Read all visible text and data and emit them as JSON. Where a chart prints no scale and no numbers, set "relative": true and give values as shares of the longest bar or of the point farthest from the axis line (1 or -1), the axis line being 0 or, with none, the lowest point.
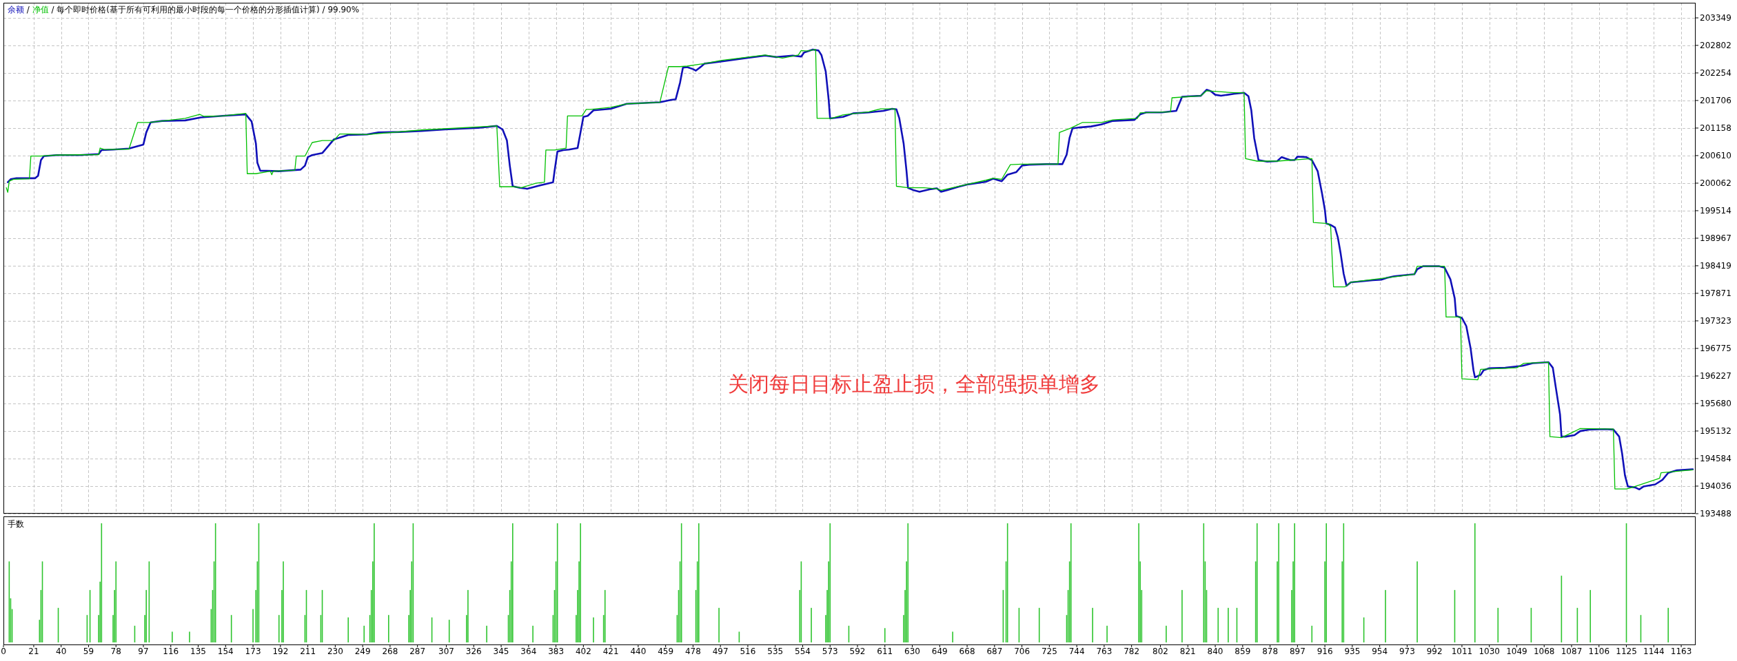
{
  "chart_data": [
    {
      "type": "line",
      "subtitle": "/ 每个即时价格(基于所有可利用的最小时段的每一个价格的分形插值计算) / 99.90%",
      "annotations": [
        "/",
        "关闭每日目标止盈止损，全部强损单增多"
      ],
      "legend": "top left",
      "grid": true,
      "tick_labels": "y",
      "xlim": [
        0,
        1173
      ],
      "xticks": [
        0,
        21,
        40,
        59,
        78,
        97,
        116,
        135,
        154,
        173,
        192,
        211,
        230,
        249,
        268,
        287,
        307,
        326,
        345,
        364,
        383,
        402,
        421,
        440,
        459,
        478,
        497,
        516,
        535,
        554,
        573,
        592,
        611,
        630,
        649,
        668,
        687,
        706,
        725,
        744,
        763,
        782,
        802,
        821,
        840,
        859,
        878,
        897,
        916,
        935,
        954,
        973,
        992,
        1011,
        1030,
        1049,
        1068,
        1087,
        1106,
        1125,
        1144,
        1163
      ],
      "ylim": [
        193488,
        203650
      ],
      "yticks": [
        193488,
        194036,
        194584,
        195132,
        195680,
        196227,
        196775,
        197323,
        197871,
        198419,
        198967,
        199514,
        200062,
        200610,
        201158,
        201706,
        202254,
        202802,
        203349
      ],
      "series": [
        {
          "name": "余额",
          "color": "#1010b8",
          "x": [
            3,
            5,
            9,
            22,
            24,
            26,
            28,
            37,
            53,
            66,
            68,
            76,
            87,
            97,
            99,
            102,
            110,
            126,
            137,
            152,
            168,
            172,
            175,
            176,
            178,
            191,
            206,
            209,
            211,
            214,
            221,
            229,
            239,
            252,
            260,
            275,
            290,
            306,
            329,
            342,
            346,
            349,
            351,
            353,
            358,
            363,
            371,
            381,
            382,
            384,
            388,
            392,
            398,
            400,
            402,
            405,
            409,
            421,
            432,
            455,
            463,
            466,
            469,
            471,
            474,
            478,
            480,
            484,
            486,
            497,
            517,
            528,
            536,
            547,
            553,
            555,
            561,
            565,
            567,
            570,
            572,
            573,
            582,
            589,
            600,
            610,
            616,
            619,
            621,
            624,
            626,
            627,
            631,
            635,
            642,
            647,
            650,
            654,
            662,
            669,
            681,
            686,
            692,
            696,
            702,
            706,
            711,
            723,
            734,
            737,
            739,
            741,
            746,
            754,
            761,
            769,
            784,
            788,
            792,
            803,
            813,
            817,
            823,
            830,
            834,
            837,
            840,
            844,
            853,
            860,
            863,
            865,
            867,
            870,
            876,
            883,
            886,
            892,
            895,
            897,
            903,
            907,
            911,
            914,
            916,
            917,
            920,
            923,
            925,
            927,
            929,
            931,
            934,
            938,
            949,
            955,
            959,
            964,
            978,
            980,
            984,
            995,
            999,
            1003,
            1006,
            1007,
            1011,
            1014,
            1017,
            1019,
            1020,
            1024,
            1026,
            1030,
            1041,
            1053,
            1060,
            1071,
            1074,
            1076,
            1079,
            1080,
            1083,
            1089,
            1093,
            1099,
            1110,
            1116,
            1120,
            1122,
            1124,
            1126,
            1131,
            1134,
            1137,
            1145,
            1150,
            1154,
            1160,
            1171
          ],
          "values": [
            200080,
            200140,
            200160,
            200160,
            200210,
            200520,
            200600,
            200620,
            200620,
            200640,
            200720,
            200730,
            200750,
            200830,
            201070,
            201270,
            201300,
            201310,
            201370,
            201400,
            201430,
            201290,
            200850,
            200470,
            200310,
            200300,
            200330,
            200410,
            200580,
            200620,
            200660,
            200930,
            201020,
            201030,
            201070,
            201080,
            201100,
            201130,
            201160,
            201200,
            201130,
            200910,
            200410,
            200000,
            199970,
            199950,
            200010,
            200080,
            200300,
            200690,
            200720,
            200730,
            200760,
            201070,
            201380,
            201400,
            201510,
            201540,
            201640,
            201670,
            201720,
            201730,
            202060,
            202360,
            202370,
            202330,
            202300,
            202390,
            202440,
            202480,
            202560,
            202600,
            202570,
            202600,
            202580,
            202660,
            202720,
            202700,
            202610,
            202280,
            201730,
            201350,
            201380,
            201450,
            201470,
            201500,
            201540,
            201530,
            201350,
            200850,
            200300,
            199970,
            199920,
            199890,
            199940,
            199960,
            199890,
            199920,
            199990,
            200040,
            200090,
            200150,
            200100,
            200230,
            200280,
            200410,
            200430,
            200440,
            200440,
            200630,
            200960,
            201150,
            201170,
            201190,
            201230,
            201300,
            201320,
            201430,
            201470,
            201470,
            201500,
            201780,
            201790,
            201800,
            201920,
            201890,
            201820,
            201800,
            201840,
            201860,
            201790,
            201510,
            200960,
            200520,
            200490,
            200500,
            200580,
            200520,
            200520,
            200590,
            200580,
            200520,
            200300,
            199860,
            199530,
            199260,
            199230,
            199180,
            198980,
            198650,
            198260,
            198020,
            198090,
            198100,
            198130,
            198140,
            198180,
            198210,
            198250,
            198350,
            198410,
            198410,
            198380,
            198150,
            197770,
            197420,
            197380,
            197220,
            196780,
            196340,
            196200,
            196250,
            196340,
            196380,
            196390,
            196430,
            196480,
            196500,
            196390,
            196010,
            195460,
            195020,
            195020,
            195050,
            195130,
            195160,
            195170,
            195160,
            195020,
            194690,
            194250,
            194030,
            194010,
            193970,
            194030,
            194070,
            194160,
            194300,
            194350,
            194370
          ]
        },
        {
          "name": "净值",
          "color": "#00c000",
          "x": [
            2,
            3,
            4,
            7,
            18,
            19,
            26,
            37,
            66,
            67,
            70,
            87,
            93,
            101,
            126,
            136,
            139,
            152,
            168,
            169,
            175,
            185,
            186,
            187,
            202,
            203,
            209,
            214,
            221,
            229,
            233,
            239,
            252,
            290,
            342,
            344,
            354,
            359,
            369,
            375,
            376,
            382,
            390,
            391,
            401,
            404,
            407,
            421,
            432,
            455,
            461,
            469,
            474,
            486,
            497,
            528,
            540,
            551,
            553,
            557,
            563,
            564,
            574,
            582,
            600,
            608,
            618,
            619,
            627,
            638,
            647,
            650,
            662,
            681,
            686,
            692,
            698,
            706,
            731,
            732,
            740,
            748,
            761,
            769,
            786,
            788,
            809,
            810,
            830,
            834,
            853,
            860,
            861,
            869,
            883,
            907,
            908,
            918,
            920,
            922,
            930,
            934,
            978,
            980,
            999,
            1000,
            1010,
            1011,
            1022,
            1024,
            1049,
            1054,
            1071,
            1072,
            1080,
            1093,
            1116,
            1117,
            1125,
            1129,
            1148,
            1149,
            1171
          ],
          "values": [
            199970,
            199880,
            200100,
            200140,
            200150,
            200600,
            200600,
            200620,
            200630,
            200760,
            200730,
            200740,
            201270,
            201270,
            201350,
            201430,
            201390,
            201400,
            201450,
            200250,
            200250,
            200300,
            200230,
            200300,
            200320,
            200600,
            200600,
            200870,
            200910,
            200910,
            201040,
            201040,
            201030,
            201120,
            201200,
            199990,
            199990,
            199970,
            200060,
            200080,
            200720,
            200720,
            200760,
            201400,
            201400,
            201530,
            201530,
            201570,
            201640,
            201670,
            202380,
            202380,
            202390,
            202440,
            202500,
            202610,
            202550,
            202610,
            202700,
            202690,
            202720,
            201350,
            201350,
            201420,
            201480,
            201540,
            201540,
            200000,
            199970,
            199970,
            199950,
            199920,
            200000,
            200120,
            200160,
            200140,
            200430,
            200440,
            200440,
            201070,
            201160,
            201270,
            201270,
            201320,
            201350,
            201460,
            201480,
            201760,
            201800,
            201900,
            201860,
            201860,
            200550,
            200500,
            200500,
            200550,
            199280,
            199260,
            199200,
            198000,
            198000,
            198090,
            198250,
            198410,
            198410,
            197400,
            197400,
            196170,
            196150,
            196360,
            196390,
            196480,
            196500,
            195020,
            195000,
            195180,
            195170,
            193980,
            193980,
            194010,
            194190,
            194300,
            194360
          ]
        }
      ]
    },
    {
      "type": "bar",
      "title": "手数",
      "relative": true,
      "tick_labels": "x",
      "xlim": [
        0,
        1173
      ],
      "xticks": [
        0,
        21,
        40,
        59,
        78,
        97,
        116,
        135,
        154,
        173,
        192,
        211,
        230,
        249,
        268,
        287,
        307,
        326,
        345,
        364,
        383,
        402,
        421,
        440,
        459,
        478,
        497,
        516,
        535,
        554,
        573,
        592,
        611,
        630,
        649,
        668,
        687,
        706,
        725,
        744,
        763,
        782,
        802,
        821,
        840,
        859,
        878,
        897,
        916,
        935,
        954,
        973,
        992,
        1011,
        1030,
        1049,
        1068,
        1087,
        1106,
        1125,
        1144,
        1163
      ],
      "series": [
        {
          "color": "#2ec42e",
          "x": [
            4,
            5,
            6,
            25,
            26,
            27,
            38,
            58,
            60,
            66,
            67,
            68,
            76,
            77,
            78,
            91,
            98,
            99,
            101,
            117,
            129,
            144,
            145,
            146,
            147,
            158,
            173,
            175,
            176,
            177,
            191,
            193,
            194,
            209,
            210,
            220,
            221,
            239,
            250,
            254,
            255,
            256,
            257,
            267,
            281,
            282,
            283,
            284,
            297,
            309,
            321,
            322,
            335,
            350,
            351,
            352,
            353,
            367,
            381,
            382,
            383,
            384,
            397,
            398,
            399,
            400,
            409,
            416,
            417,
            467,
            468,
            469,
            470,
            480,
            481,
            482,
            496,
            510,
            552,
            553,
            560,
            570,
            571,
            572,
            573,
            586,
            611,
            624,
            625,
            626,
            627,
            658,
            693,
            695,
            696,
            704,
            718,
            737,
            738,
            739,
            740,
            755,
            765,
            787,
            788,
            789,
            806,
            817,
            832,
            833,
            834,
            842,
            849,
            855,
            868,
            869,
            883,
            884,
            893,
            894,
            895,
            907,
            916,
            917,
            928,
            929,
            943,
            958,
            980,
            1006,
            1020,
            1036,
            1059,
            1080,
            1091,
            1100,
            1125,
            1135,
            1154
          ],
          "values": [
            0.68,
            0.37,
            0.28,
            0.19,
            0.44,
            0.68,
            0.29,
            0.23,
            0.44,
            0.23,
            0.51,
            1,
            0.23,
            0.44,
            0.68,
            0.14,
            0.23,
            0.44,
            0.68,
            0.09,
            0.09,
            0.28,
            0.44,
            0.68,
            1,
            0.23,
            0.28,
            0.44,
            0.68,
            1,
            0.23,
            0.44,
            0.68,
            0.23,
            0.44,
            0.23,
            0.44,
            0.21,
            0.14,
            0.23,
            0.44,
            0.68,
            1,
            0.23,
            0.23,
            0.44,
            0.68,
            1,
            0.21,
            0.19,
            0.23,
            0.44,
            0.14,
            0.23,
            0.44,
            0.68,
            1,
            0.14,
            0.23,
            0.44,
            0.68,
            1,
            0.23,
            0.44,
            0.68,
            1,
            0.21,
            0.23,
            0.44,
            0.23,
            0.44,
            0.68,
            1,
            0.44,
            0.68,
            1,
            0.29,
            0.09,
            0.44,
            0.68,
            0.29,
            0.23,
            0.44,
            0.68,
            1,
            0.14,
            0.12,
            0.23,
            0.44,
            0.68,
            1,
            0.09,
            0.44,
            0.68,
            1,
            0.29,
            0.29,
            0.23,
            0.44,
            0.68,
            1,
            0.29,
            0.14,
            1,
            0.68,
            0.44,
            0.14,
            0.44,
            1,
            0.68,
            0.44,
            0.29,
            0.29,
            0.29,
            0.68,
            1,
            0.68,
            1,
            0.44,
            0.68,
            1,
            0.14,
            0.68,
            1,
            0.68,
            1,
            0.21,
            0.44,
            0.68,
            0.44,
            1,
            0.29,
            0.29,
            0.56,
            0.29,
            0.44,
            1,
            0.23,
            0.29
          ]
        }
      ]
    }
  ]
}
